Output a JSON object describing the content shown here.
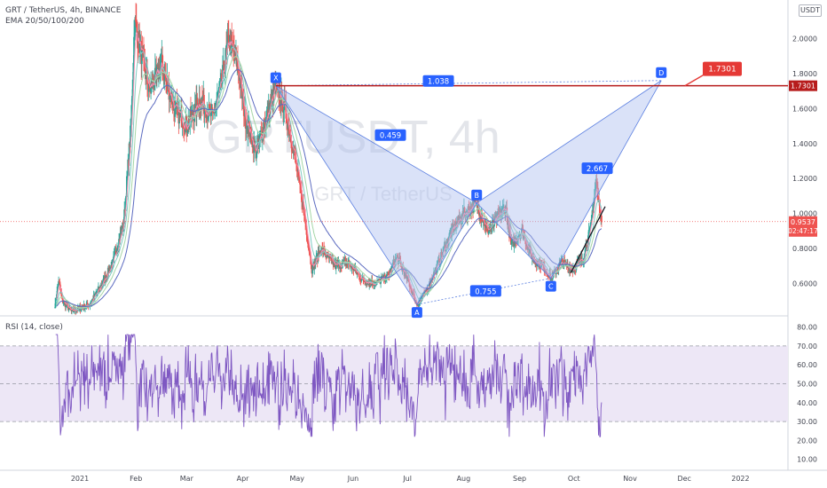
{
  "header": {
    "symbol_line": "GRT / TetherUS, 4h, BINANCE",
    "indicator_line": "EMA 20/50/100/200",
    "currency_badge": "USDT",
    "rsi_label": "RSI (14, close)"
  },
  "watermark": {
    "main": "GRTUSDT, 4h",
    "sub": "GRT / TetherUS"
  },
  "colors": {
    "bull": "#26a69a",
    "bear": "#ef5350",
    "pattern_fill": "#aebff0",
    "pattern_line": "#5b7fe0",
    "point_label": "#2962ff",
    "target": "#e53935",
    "target_line": "#b71c1c",
    "rsi_line": "#7e57c2",
    "rsi_band": "#ede7f6",
    "ema": [
      "#f48fb1",
      "#80cbc4",
      "#a5d6a7",
      "#5c6bc0"
    ]
  },
  "chart_data": [
    {
      "type": "candlestick",
      "title": "GRT / TetherUS, 4h, BINANCE",
      "indicators": [
        "EMA 20",
        "EMA 50",
        "EMA 100",
        "EMA 200"
      ],
      "x_ticks": [
        "2021",
        "Feb",
        "Mar",
        "Apr",
        "May",
        "Jun",
        "Jul",
        "Aug",
        "Sep",
        "Oct",
        "Nov",
        "Dec",
        "2022"
      ],
      "y_ticks": [
        "2.0000",
        "1.8000",
        "1.6000",
        "1.4000",
        "1.2000",
        "1.0000",
        "0.8000",
        "0.6000"
      ],
      "ylim": [
        0.42,
        2.2
      ],
      "last_price": "0.9537",
      "countdown": "02:47:17",
      "target_price": "1.7301",
      "price_path": [
        [
          "2021-01-01",
          0.48
        ],
        [
          "2021-01-03",
          0.62
        ],
        [
          "2021-01-05",
          0.5
        ],
        [
          "2021-01-10",
          0.44
        ],
        [
          "2021-01-20",
          0.48
        ],
        [
          "2021-01-26",
          0.58
        ],
        [
          "2021-02-02",
          0.72
        ],
        [
          "2021-02-08",
          0.95
        ],
        [
          "2021-02-12",
          1.5
        ],
        [
          "2021-02-14",
          2.1
        ],
        [
          "2021-02-18",
          1.9
        ],
        [
          "2021-02-22",
          1.7
        ],
        [
          "2021-03-01",
          1.85
        ],
        [
          "2021-03-08",
          1.6
        ],
        [
          "2021-03-15",
          1.5
        ],
        [
          "2021-03-22",
          1.65
        ],
        [
          "2021-03-29",
          1.55
        ],
        [
          "2021-04-03",
          1.75
        ],
        [
          "2021-04-07",
          2.0
        ],
        [
          "2021-04-12",
          1.85
        ],
        [
          "2021-04-16",
          1.55
        ],
        [
          "2021-04-22",
          1.35
        ],
        [
          "2021-04-28",
          1.55
        ],
        [
          "2021-05-03",
          1.73
        ],
        [
          "2021-05-08",
          1.6
        ],
        [
          "2021-05-13",
          1.35
        ],
        [
          "2021-05-18",
          1.05
        ],
        [
          "2021-05-23",
          0.68
        ],
        [
          "2021-05-28",
          0.8
        ],
        [
          "2021-06-05",
          0.7
        ],
        [
          "2021-06-12",
          0.72
        ],
        [
          "2021-06-20",
          0.62
        ],
        [
          "2021-06-27",
          0.6
        ],
        [
          "2021-07-04",
          0.64
        ],
        [
          "2021-07-09",
          0.75
        ],
        [
          "2021-07-15",
          0.62
        ],
        [
          "2021-07-20",
          0.48
        ],
        [
          "2021-07-25",
          0.55
        ],
        [
          "2021-08-01",
          0.72
        ],
        [
          "2021-08-08",
          0.9
        ],
        [
          "2021-08-15",
          1.0
        ],
        [
          "2021-08-22",
          1.06
        ],
        [
          "2021-08-28",
          0.9
        ],
        [
          "2021-09-03",
          0.98
        ],
        [
          "2021-09-07",
          1.04
        ],
        [
          "2021-09-10",
          0.82
        ],
        [
          "2021-09-16",
          0.9
        ],
        [
          "2021-09-22",
          0.74
        ],
        [
          "2021-09-28",
          0.7
        ],
        [
          "2021-10-02",
          0.63
        ],
        [
          "2021-10-08",
          0.72
        ],
        [
          "2021-10-14",
          0.68
        ],
        [
          "2021-10-20",
          0.75
        ],
        [
          "2021-10-24",
          0.92
        ],
        [
          "2021-10-27",
          1.18
        ],
        [
          "2021-10-30",
          0.95
        ]
      ],
      "harmonic_pattern": {
        "points": [
          {
            "label": "X",
            "date": "2021-05-03",
            "price": 1.73
          },
          {
            "label": "A",
            "date": "2021-07-20",
            "price": 0.48
          },
          {
            "label": "B",
            "date": "2021-08-22",
            "price": 1.06
          },
          {
            "label": "C",
            "date": "2021-10-02",
            "price": 0.63
          },
          {
            "label": "D",
            "date": "2021-12-02",
            "price": 1.76
          }
        ],
        "ratios": [
          "1.038",
          "0.459",
          "2.667",
          "0.755"
        ]
      }
    },
    {
      "type": "line",
      "title": "RSI (14, close)",
      "y_ticks": [
        "80.00",
        "70.00",
        "60.00",
        "50.00",
        "40.00",
        "30.00",
        "20.00",
        "10.00"
      ],
      "ylim": [
        8,
        84
      ],
      "bands": [
        30,
        50,
        70
      ],
      "range": [
        22,
        76
      ]
    }
  ]
}
